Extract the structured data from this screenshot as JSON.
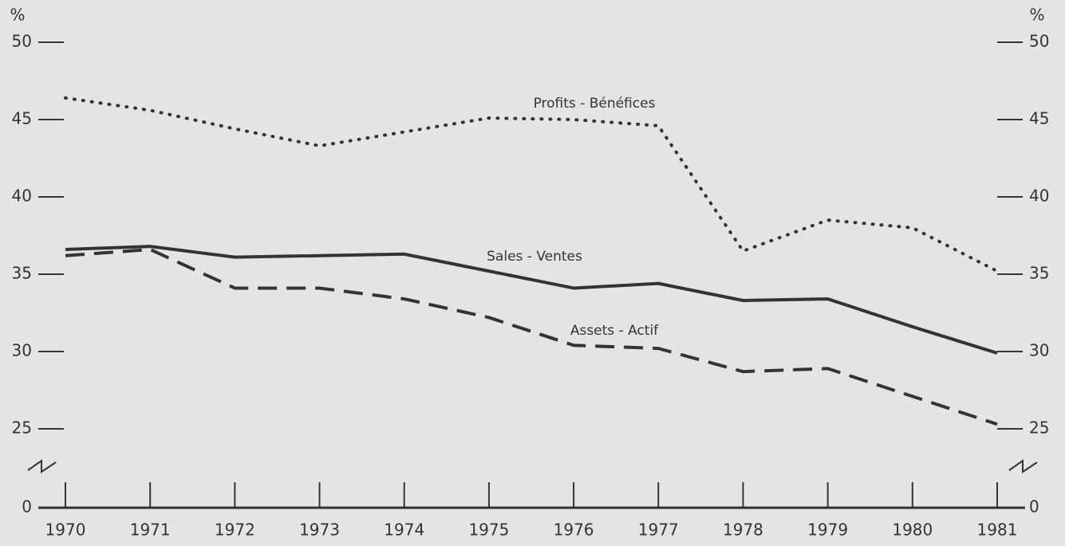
{
  "chart_data": {
    "type": "line",
    "y_unit": "%",
    "x": [
      1970,
      1971,
      1972,
      1973,
      1974,
      1975,
      1976,
      1977,
      1978,
      1979,
      1980,
      1981
    ],
    "series": [
      {
        "name": "Profits - Bénéfices",
        "color": "#333333",
        "style": "dotted",
        "values": [
          46.4,
          45.6,
          44.4,
          43.3,
          44.2,
          45.1,
          45.0,
          44.6,
          36.5,
          38.5,
          38.0,
          35.2
        ]
      },
      {
        "name": "Sales - Ventes",
        "color": "#333333",
        "style": "solid",
        "values": [
          36.6,
          36.8,
          36.1,
          36.2,
          36.3,
          35.2,
          34.1,
          34.4,
          33.3,
          33.4,
          31.6,
          29.9
        ]
      },
      {
        "name": "Assets - Actif",
        "color": "#333333",
        "style": "dashed",
        "values": [
          36.2,
          36.6,
          34.1,
          34.1,
          33.4,
          32.2,
          30.4,
          30.2,
          28.7,
          28.9,
          27.1,
          25.3
        ]
      }
    ],
    "xlim": [
      1970,
      1981
    ],
    "ylim": [
      0,
      50
    ],
    "yticks": [
      0,
      25,
      30,
      35,
      40,
      45,
      50
    ],
    "axis_break": true
  }
}
